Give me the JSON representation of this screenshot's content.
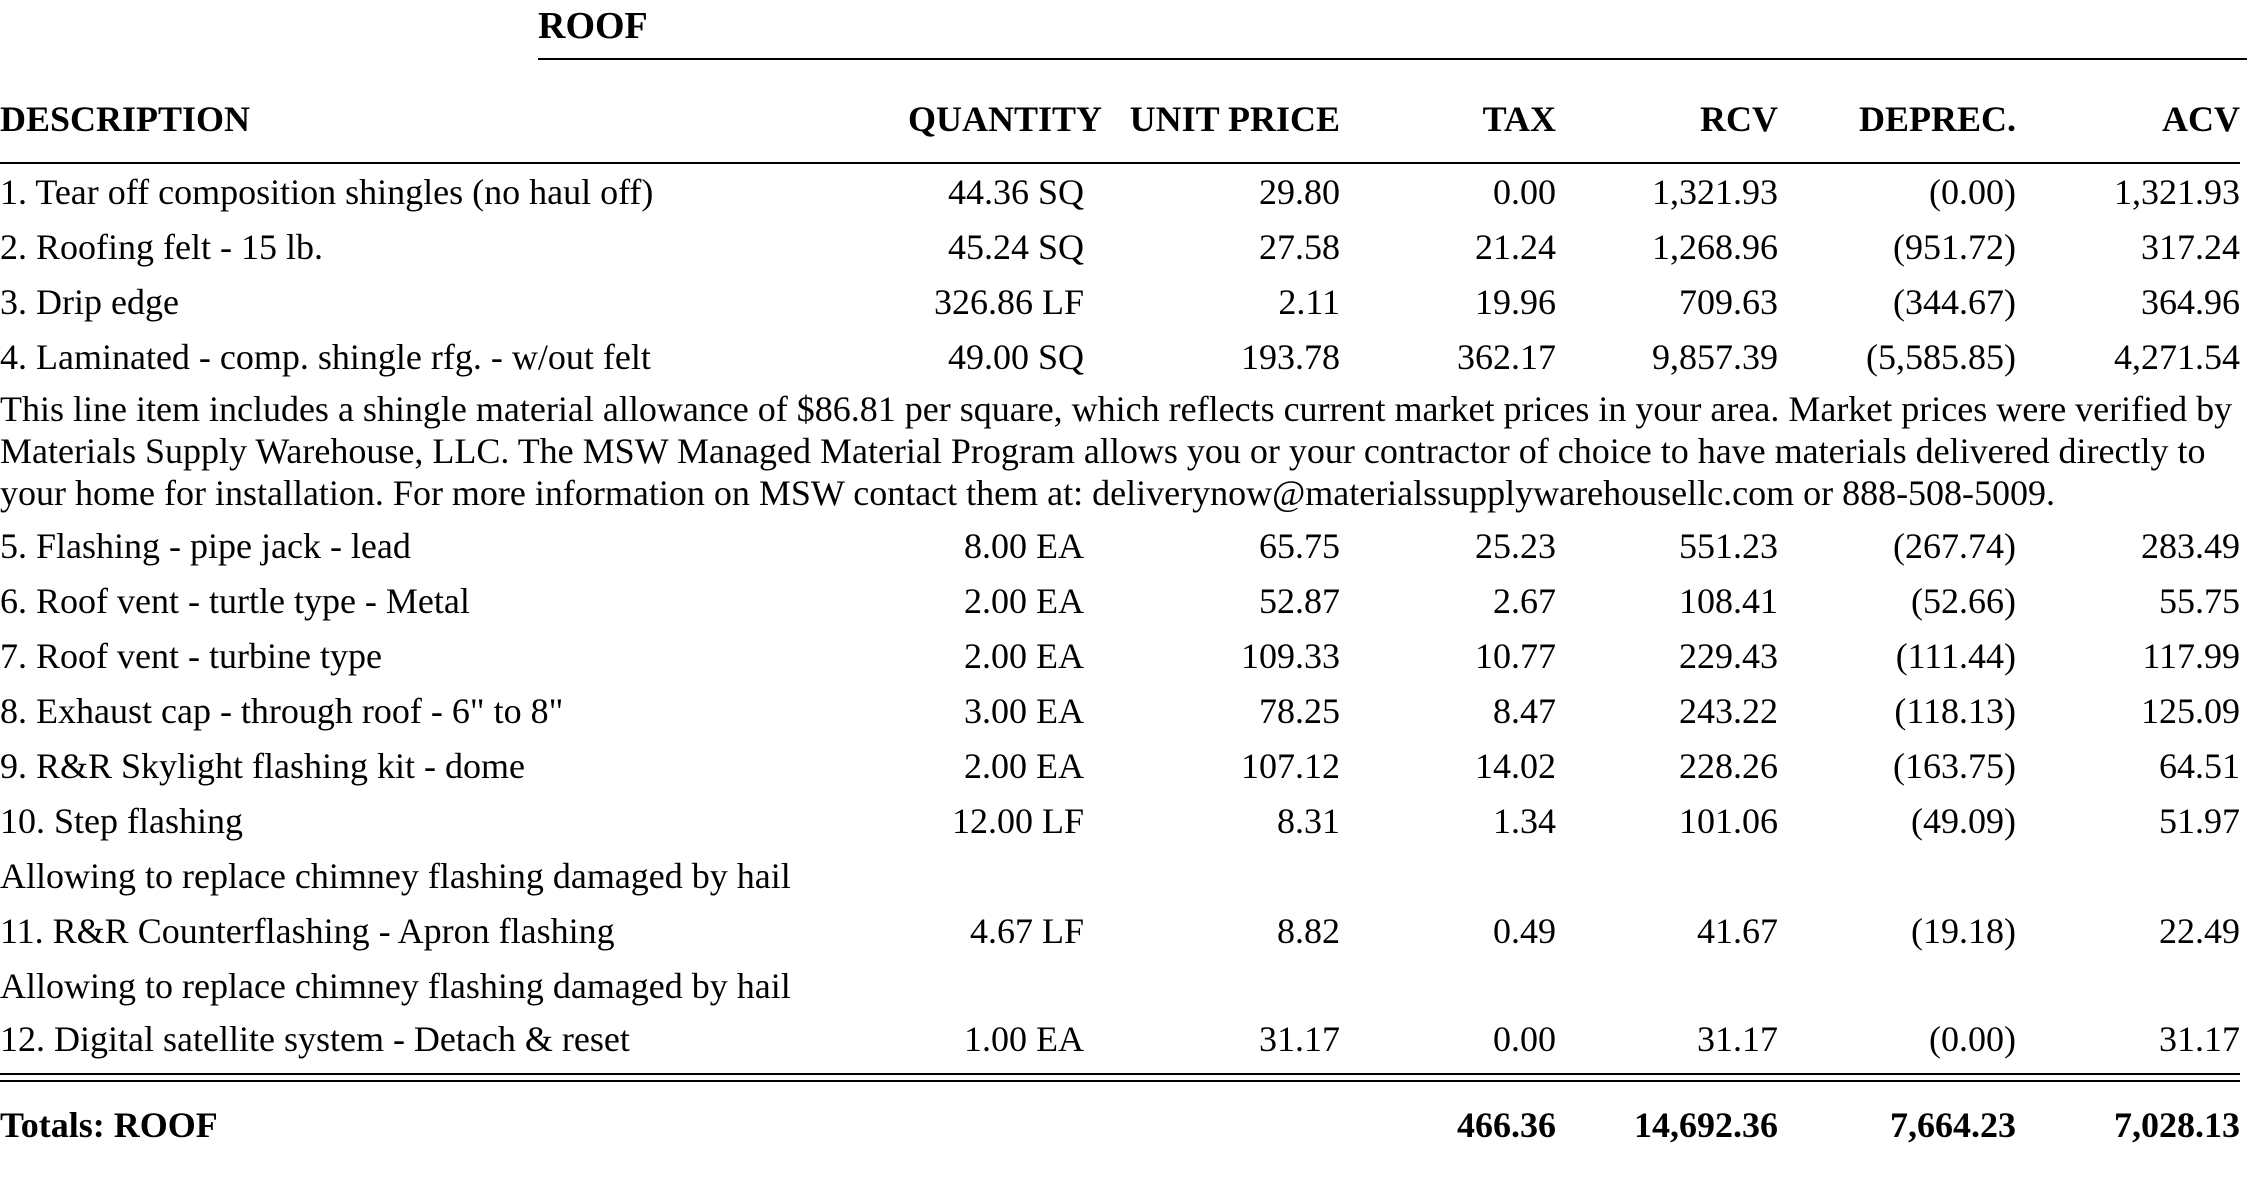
{
  "section": {
    "title": "ROOF"
  },
  "columns": {
    "description": "DESCRIPTION",
    "quantity": "QUANTITY",
    "unit_price": "UNIT PRICE",
    "tax": "TAX",
    "rcv": "RCV",
    "deprec": "DEPREC.",
    "acv": "ACV"
  },
  "items": [
    {
      "desc": "1.  Tear off composition shingles (no haul off)",
      "qty": "44.36 SQ",
      "unit_price": "29.80",
      "tax": "0.00",
      "rcv": "1,321.93",
      "deprec": "(0.00)",
      "acv": "1,321.93"
    },
    {
      "desc": "2.  Roofing felt - 15 lb.",
      "qty": "45.24 SQ",
      "unit_price": "27.58",
      "tax": "21.24",
      "rcv": "1,268.96",
      "deprec": "(951.72)",
      "acv": "317.24"
    },
    {
      "desc": "3.  Drip edge",
      "qty": "326.86 LF",
      "unit_price": "2.11",
      "tax": "19.96",
      "rcv": "709.63",
      "deprec": "(344.67)",
      "acv": "364.96"
    },
    {
      "desc": "4.  Laminated - comp. shingle rfg. - w/out felt",
      "qty": "49.00 SQ",
      "unit_price": "193.78",
      "tax": "362.17",
      "rcv": "9,857.39",
      "deprec": "(5,585.85)",
      "acv": "4,271.54"
    },
    {
      "desc": "5.  Flashing - pipe jack - lead",
      "qty": "8.00 EA",
      "unit_price": "65.75",
      "tax": "25.23",
      "rcv": "551.23",
      "deprec": "(267.74)",
      "acv": "283.49"
    },
    {
      "desc": "6.  Roof vent - turtle type - Metal",
      "qty": "2.00 EA",
      "unit_price": "52.87",
      "tax": "2.67",
      "rcv": "108.41",
      "deprec": "(52.66)",
      "acv": "55.75"
    },
    {
      "desc": "7.  Roof vent - turbine type",
      "qty": "2.00 EA",
      "unit_price": "109.33",
      "tax": "10.77",
      "rcv": "229.43",
      "deprec": "(111.44)",
      "acv": "117.99"
    },
    {
      "desc": "8.  Exhaust cap - through roof - 6\" to 8\"",
      "qty": "3.00 EA",
      "unit_price": "78.25",
      "tax": "8.47",
      "rcv": "243.22",
      "deprec": "(118.13)",
      "acv": "125.09"
    },
    {
      "desc": "9.  R&R Skylight flashing kit - dome",
      "qty": "2.00 EA",
      "unit_price": "107.12",
      "tax": "14.02",
      "rcv": "228.26",
      "deprec": "(163.75)",
      "acv": "64.51"
    },
    {
      "desc": "10.  Step flashing",
      "qty": "12.00 LF",
      "unit_price": "8.31",
      "tax": "1.34",
      "rcv": "101.06",
      "deprec": "(49.09)",
      "acv": "51.97"
    },
    {
      "desc": "11.  R&R Counterflashing - Apron flashing",
      "qty": "4.67 LF",
      "unit_price": "8.82",
      "tax": "0.49",
      "rcv": "41.67",
      "deprec": "(19.18)",
      "acv": "22.49"
    },
    {
      "desc": "12.  Digital satellite system - Detach & reset",
      "qty": "1.00 EA",
      "unit_price": "31.17",
      "tax": "0.00",
      "rcv": "31.17",
      "deprec": "(0.00)",
      "acv": "31.17"
    }
  ],
  "notes": {
    "item4": "This line item includes a shingle material allowance of $86.81 per square, which reflects current market prices in your area. Market prices were verified by Materials Supply Warehouse, LLC.  The MSW Managed Material Program allows you or your contractor of choice to have materials delivered directly to your home for installation. For more information on MSW contact them at: deliverynow@materialssupplywarehousellc.com or 888-508-5009.",
    "item10": "Allowing to replace chimney flashing damaged by hail",
    "item11": "Allowing to replace chimney flashing damaged by hail"
  },
  "totals": {
    "label": "Totals:  ROOF",
    "tax": "466.36",
    "rcv": "14,692.36",
    "deprec": "7,664.23",
    "acv": "7,028.13"
  }
}
